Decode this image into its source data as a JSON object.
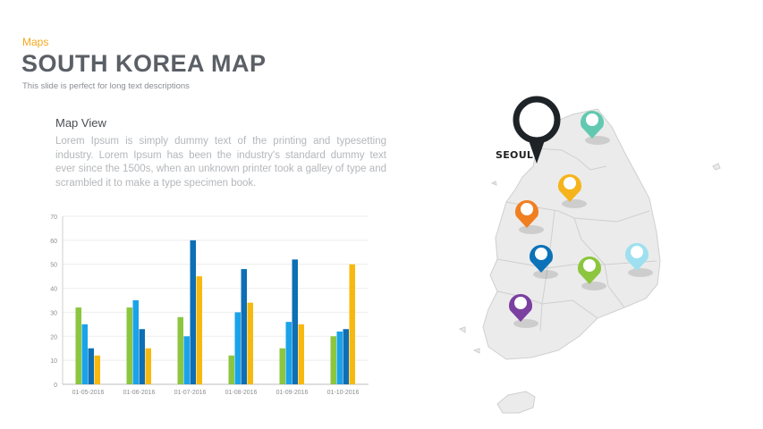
{
  "header": {
    "tag": "Maps",
    "title": "SOUTH KOREA MAP",
    "subtitle": "This slide is perfect for long text descriptions"
  },
  "map_view": {
    "title": "Map View",
    "description": "Lorem Ipsum is simply dummy text of the printing and typesetting industry. Lorem Ipsum has been the industry's standard dummy text ever since the 1500s, when an unknown printer took a galley of type and scrambled it to make a type specimen book."
  },
  "map": {
    "capital_label": "SEOUL",
    "pin_colors": [
      "#62c9b0",
      "#f5b41b",
      "#f07f22",
      "#0d72b8",
      "#8cc63f",
      "#9ee0f0",
      "#7b3fa0"
    ]
  },
  "chart_data": {
    "type": "bar",
    "categories": [
      "01-05-2016",
      "01-06-2016",
      "01-07-2016",
      "01-08-2016",
      "01-09-2016",
      "01-10-2016"
    ],
    "series": [
      {
        "color": "#8cc63f",
        "values": [
          32,
          32,
          28,
          12,
          15,
          20
        ]
      },
      {
        "color": "#1aa3e8",
        "values": [
          25,
          35,
          20,
          30,
          26,
          22
        ]
      },
      {
        "color": "#0d6fb5",
        "values": [
          15,
          23,
          60,
          48,
          52,
          23
        ]
      },
      {
        "color": "#f7b90f",
        "values": [
          12,
          15,
          45,
          34,
          25,
          50
        ]
      }
    ],
    "ylim": [
      0,
      70
    ],
    "yticks": [
      0,
      10,
      20,
      30,
      40,
      50,
      60,
      70
    ],
    "grid": true,
    "title": "",
    "xlabel": "",
    "ylabel": ""
  }
}
